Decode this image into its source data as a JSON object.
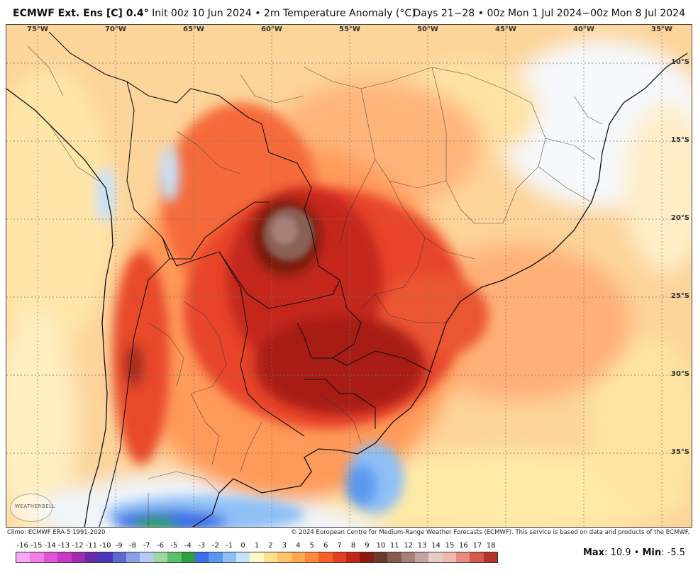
{
  "header": {
    "model": "ECMWF Ext. Ens [C] 0.4",
    "degree": "°",
    "init": "Init 00z 10 Jun 2024",
    "bullet": "•",
    "field": "2m Temperature Anomaly (°C)",
    "valid": "Days 21−28 • 00z Mon 1 Jul 2024−00z Mon 8 Jul 2024"
  },
  "map": {
    "longitude_labels": [
      "75°W",
      "70°W",
      "65°W",
      "60°W",
      "55°W",
      "50°W",
      "45°W",
      "40°W",
      "35°W"
    ],
    "latitude_labels": [
      "10°S",
      "15°S",
      "20°S",
      "25°S",
      "30°S",
      "35°S"
    ],
    "logo_text": "WEATHERBELL"
  },
  "footer": {
    "climo": "Climo: ECMWF ERA-5 1991-2020",
    "copyright": "© 2024 European Centre for Medium-Range Weather Forecasts (ECMWF). This service is based on data and products of the ECMWF."
  },
  "colorbar": {
    "labels": [
      "-16",
      "-15",
      "-14",
      "-13",
      "-12",
      "-11",
      "-10",
      "-9",
      "-8",
      "-7",
      "-6",
      "-5",
      "-4",
      "-3",
      "-2",
      "-1",
      "0",
      "1",
      "2",
      "3",
      "4",
      "5",
      "6",
      "7",
      "8",
      "9",
      "10",
      "11",
      "12",
      "13",
      "14",
      "15",
      "16",
      "17",
      "18"
    ],
    "colors": [
      "#f7a8f0",
      "#ee7fe6",
      "#e055d8",
      "#c83ac5",
      "#a02cb0",
      "#6a2aa8",
      "#4a36b8",
      "#5a6ad0",
      "#8aa0e6",
      "#b7c9f2",
      "#9cd8a4",
      "#5cc06a",
      "#2e9e3e",
      "#3a6ee6",
      "#5a98f0",
      "#8ec0f6",
      "#c8e2fa",
      "#fff6c8",
      "#ffe08a",
      "#ffc46a",
      "#ffa84e",
      "#ff8a3a",
      "#f4622a",
      "#e2401e",
      "#c02614",
      "#8c1a0e",
      "#6a3a30",
      "#8a5a50",
      "#a8807a",
      "#c4a49e",
      "#e6ccc6",
      "#f2b8b0",
      "#e88a80",
      "#d45a50",
      "#b8322a"
    ],
    "max_label": "Max",
    "max_value": ": 10.9 • ",
    "min_label": "Min",
    "min_value": ": -5.5"
  }
}
